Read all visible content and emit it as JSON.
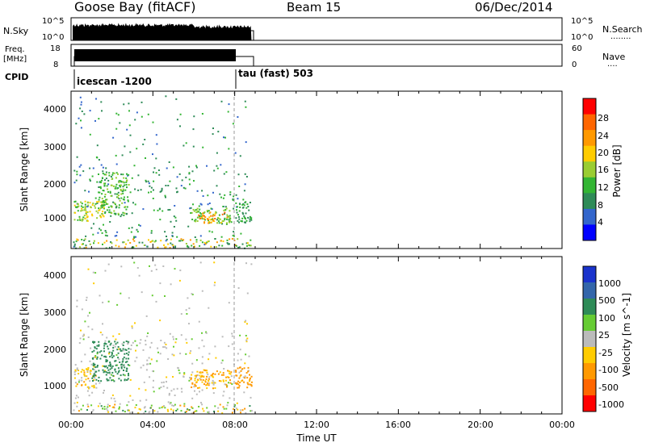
{
  "header": {
    "station": "Goose Bay (fitACF)",
    "beam": "Beam 15",
    "date": "06/Dec/2014"
  },
  "panels": {
    "nsky": {
      "label": "N.Sky",
      "ticks": [
        "10^5",
        "10^0"
      ],
      "right_ticks": [
        "10^5",
        "10^0"
      ],
      "right_label": "N.Search",
      "right_legend": "........"
    },
    "freq": {
      "label_line1": "Freq.",
      "label_line2": "[MHz]",
      "ticks": [
        "18",
        "8"
      ],
      "right_ticks": [
        "60",
        "0"
      ],
      "right_label": "Nave",
      "right_legend": "...."
    },
    "cpid": {
      "label": "CPID",
      "programs": [
        "icescan -1200",
        "tau (fast) 503"
      ]
    }
  },
  "power_panel": {
    "ylabel": "Slant Range [km]",
    "yticks": [
      "4000",
      "3000",
      "2000",
      "1000"
    ],
    "colorbar": {
      "label": "Power [dB]",
      "ticks": [
        "28",
        "24",
        "20",
        "16",
        "12",
        "8",
        "4"
      ],
      "colors": [
        "#ff0000",
        "#ff6600",
        "#ff9900",
        "#ffcc00",
        "#9acd32",
        "#33b533",
        "#2e8b57",
        "#3366cc",
        "#0000ff"
      ]
    }
  },
  "velocity_panel": {
    "ylabel": "Slant Range [km]",
    "yticks": [
      "4000",
      "3000",
      "2000",
      "1000"
    ],
    "colorbar": {
      "label": "Velocity [m s^-1]",
      "ticks": [
        "1000",
        "500",
        "100",
        "25",
        "-25",
        "-100",
        "-500",
        "-1000"
      ],
      "colors": [
        "#1a33cc",
        "#3366aa",
        "#2e8b57",
        "#66cc33",
        "#bbbbbb",
        "#ffcc00",
        "#ff9900",
        "#ff6600",
        "#ff0000"
      ]
    }
  },
  "xaxis": {
    "label": "Time UT",
    "ticks": [
      "00:00",
      "04:00",
      "08:00",
      "12:00",
      "16:00",
      "20:00",
      "00:00"
    ]
  },
  "chart_data": {
    "type": "heatmap",
    "title": "Goose Bay (fitACF)",
    "xlabel": "Time UT",
    "ylabel": "Slant Range [km]",
    "xlim_hours": [
      0,
      24
    ],
    "ylim_km": [
      180,
      4500
    ],
    "data_end_hour": 8.8,
    "program_change_hour": 8.0,
    "power_range_db": [
      0,
      32
    ],
    "velocity_range": [
      -1000,
      1000
    ],
    "series": [
      {
        "name": "Power",
        "regions": [
          {
            "t0": 0.1,
            "t1": 0.8,
            "r0": 900,
            "r1": 1500,
            "value": 16
          },
          {
            "t0": 0.6,
            "t1": 1.6,
            "r0": 1000,
            "r1": 1500,
            "value": 18
          },
          {
            "t0": 1.3,
            "t1": 2.8,
            "r0": 1100,
            "r1": 2300,
            "value": 13
          },
          {
            "t0": 5.8,
            "t1": 7.8,
            "r0": 900,
            "r1": 1300,
            "value": 14
          },
          {
            "t0": 6.2,
            "t1": 7.6,
            "r0": 900,
            "r1": 1200,
            "value": 24
          },
          {
            "t0": 8.0,
            "t1": 8.8,
            "r0": 900,
            "r1": 1500,
            "value": 10
          }
        ]
      },
      {
        "name": "Velocity",
        "regions": [
          {
            "t0": 0.1,
            "t1": 1.2,
            "r0": 900,
            "r1": 1500,
            "value": -50
          },
          {
            "t0": 1.0,
            "t1": 2.8,
            "r0": 1100,
            "r1": 2200,
            "value": 200
          },
          {
            "t0": 5.8,
            "t1": 7.8,
            "r0": 900,
            "r1": 1400,
            "value": -120
          },
          {
            "t0": 8.0,
            "t1": 8.8,
            "r0": 900,
            "r1": 1500,
            "value": -300
          }
        ]
      }
    ]
  }
}
